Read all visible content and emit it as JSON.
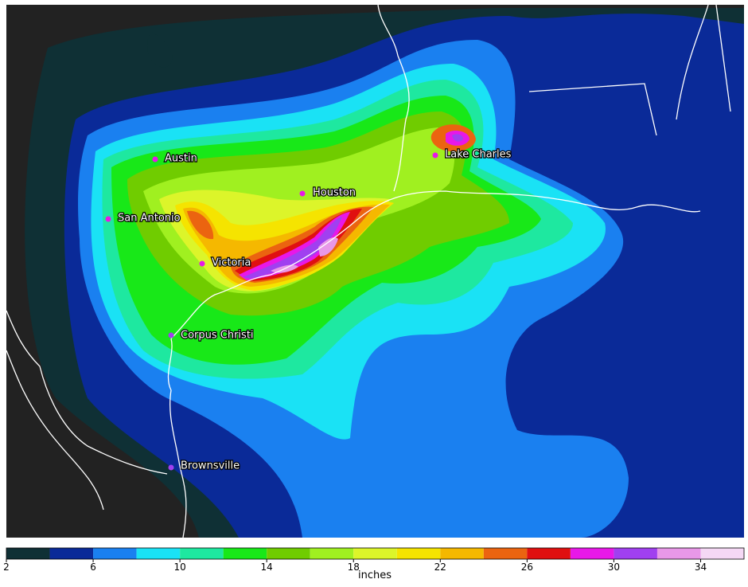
{
  "map": {
    "cities": [
      "Austin",
      "San Antonio",
      "Victoria",
      "Houston",
      "Lake Charles",
      "Corpus Christi",
      "Brownsville"
    ]
  },
  "colorbar": {
    "label": "inches",
    "levels": [
      2,
      4,
      6,
      8,
      10,
      12,
      14,
      16,
      18,
      20,
      22,
      24,
      26,
      28,
      30,
      32,
      34,
      36
    ],
    "colors": [
      "#0f3035",
      "#0a2a98",
      "#1a80f0",
      "#1ae2f5",
      "#1ee8a0",
      "#18e818",
      "#70cc00",
      "#a0f020",
      "#dcf52a",
      "#f5e400",
      "#f5b800",
      "#eb6410",
      "#e01010",
      "#e818e8",
      "#a040f0",
      "#e898e8",
      "#f5d8f5"
    ],
    "ticks": [
      2,
      6,
      10,
      14,
      18,
      22,
      26,
      30,
      34
    ]
  }
}
